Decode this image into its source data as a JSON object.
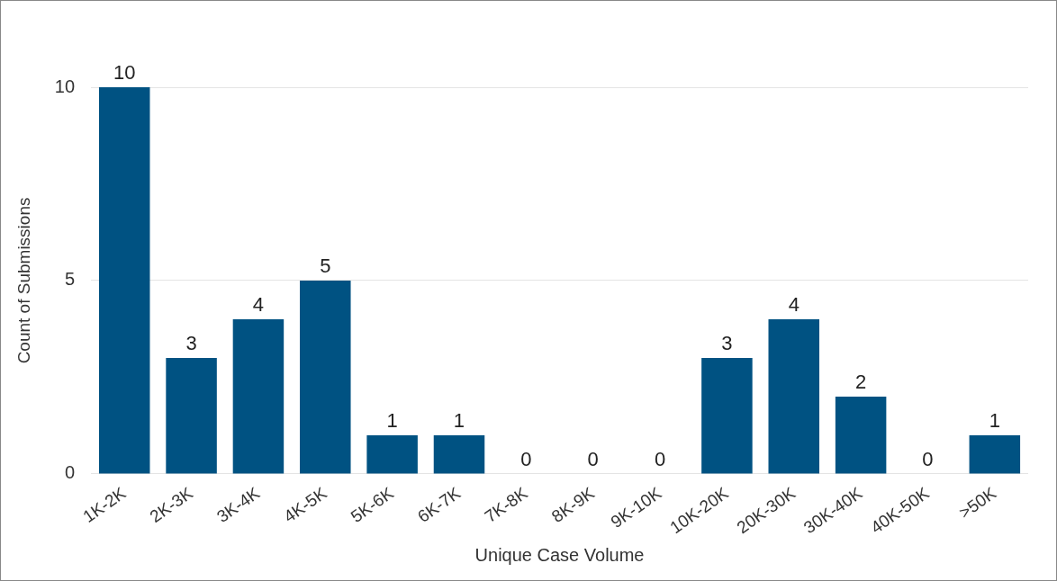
{
  "chart_data": {
    "type": "bar",
    "xlabel": "Unique Case Volume",
    "ylabel": "Count of Submissions",
    "categories": [
      "1K-2K",
      "2K-3K",
      "3K-4K",
      "4K-5K",
      "5K-6K",
      "6K-7K",
      "7K-8K",
      "8K-9K",
      "9K-10K",
      "10K-20K",
      "20K-30K",
      "30K-40K",
      "40K-50K",
      ">50K"
    ],
    "values": [
      10,
      3,
      4,
      5,
      1,
      1,
      0,
      0,
      0,
      3,
      4,
      2,
      0,
      1
    ],
    "color": "#005282",
    "ylim": [
      0,
      10
    ],
    "yticks": [
      0,
      5,
      10
    ],
    "grid": "y",
    "data_labels": true,
    "legend": false
  }
}
